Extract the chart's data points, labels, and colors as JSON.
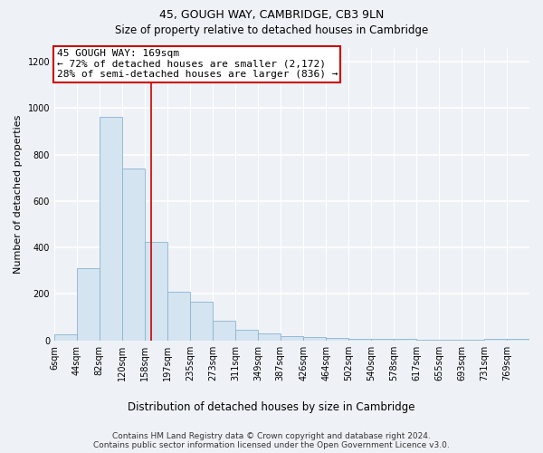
{
  "title": "45, GOUGH WAY, CAMBRIDGE, CB3 9LN",
  "subtitle": "Size of property relative to detached houses in Cambridge",
  "xlabel": "Distribution of detached houses by size in Cambridge",
  "ylabel": "Number of detached properties",
  "bar_color": "#d4e4f0",
  "bar_edge_color": "#8ab4d0",
  "bin_labels": [
    "6sqm",
    "44sqm",
    "82sqm",
    "120sqm",
    "158sqm",
    "197sqm",
    "235sqm",
    "273sqm",
    "311sqm",
    "349sqm",
    "387sqm",
    "426sqm",
    "464sqm",
    "502sqm",
    "540sqm",
    "578sqm",
    "617sqm",
    "655sqm",
    "693sqm",
    "731sqm",
    "769sqm"
  ],
  "bar_values": [
    25,
    310,
    960,
    740,
    425,
    210,
    165,
    85,
    45,
    30,
    20,
    15,
    10,
    5,
    5,
    5,
    3,
    3,
    2,
    8,
    5
  ],
  "bin_edges": [
    6,
    44,
    82,
    120,
    158,
    197,
    235,
    273,
    311,
    349,
    387,
    426,
    464,
    502,
    540,
    578,
    617,
    655,
    693,
    731,
    769,
    807
  ],
  "property_size": 169,
  "property_name": "45 GOUGH WAY: 169sqm",
  "annotation_line1": "← 72% of detached houses are smaller (2,172)",
  "annotation_line2": "28% of semi-detached houses are larger (836) →",
  "red_line_color": "#cc0000",
  "annotation_box_color": "#ffffff",
  "annotation_box_edge": "#cc0000",
  "ylim": [
    0,
    1260
  ],
  "yticks": [
    0,
    200,
    400,
    600,
    800,
    1000,
    1200
  ],
  "footer1": "Contains HM Land Registry data © Crown copyright and database right 2024.",
  "footer2": "Contains public sector information licensed under the Open Government Licence v3.0.",
  "background_color": "#eef2f7",
  "grid_color": "#ffffff",
  "title_fontsize": 9,
  "subtitle_fontsize": 8.5,
  "xlabel_fontsize": 8.5,
  "ylabel_fontsize": 8,
  "tick_fontsize": 7,
  "annotation_fontsize": 8,
  "footer_fontsize": 6.5
}
